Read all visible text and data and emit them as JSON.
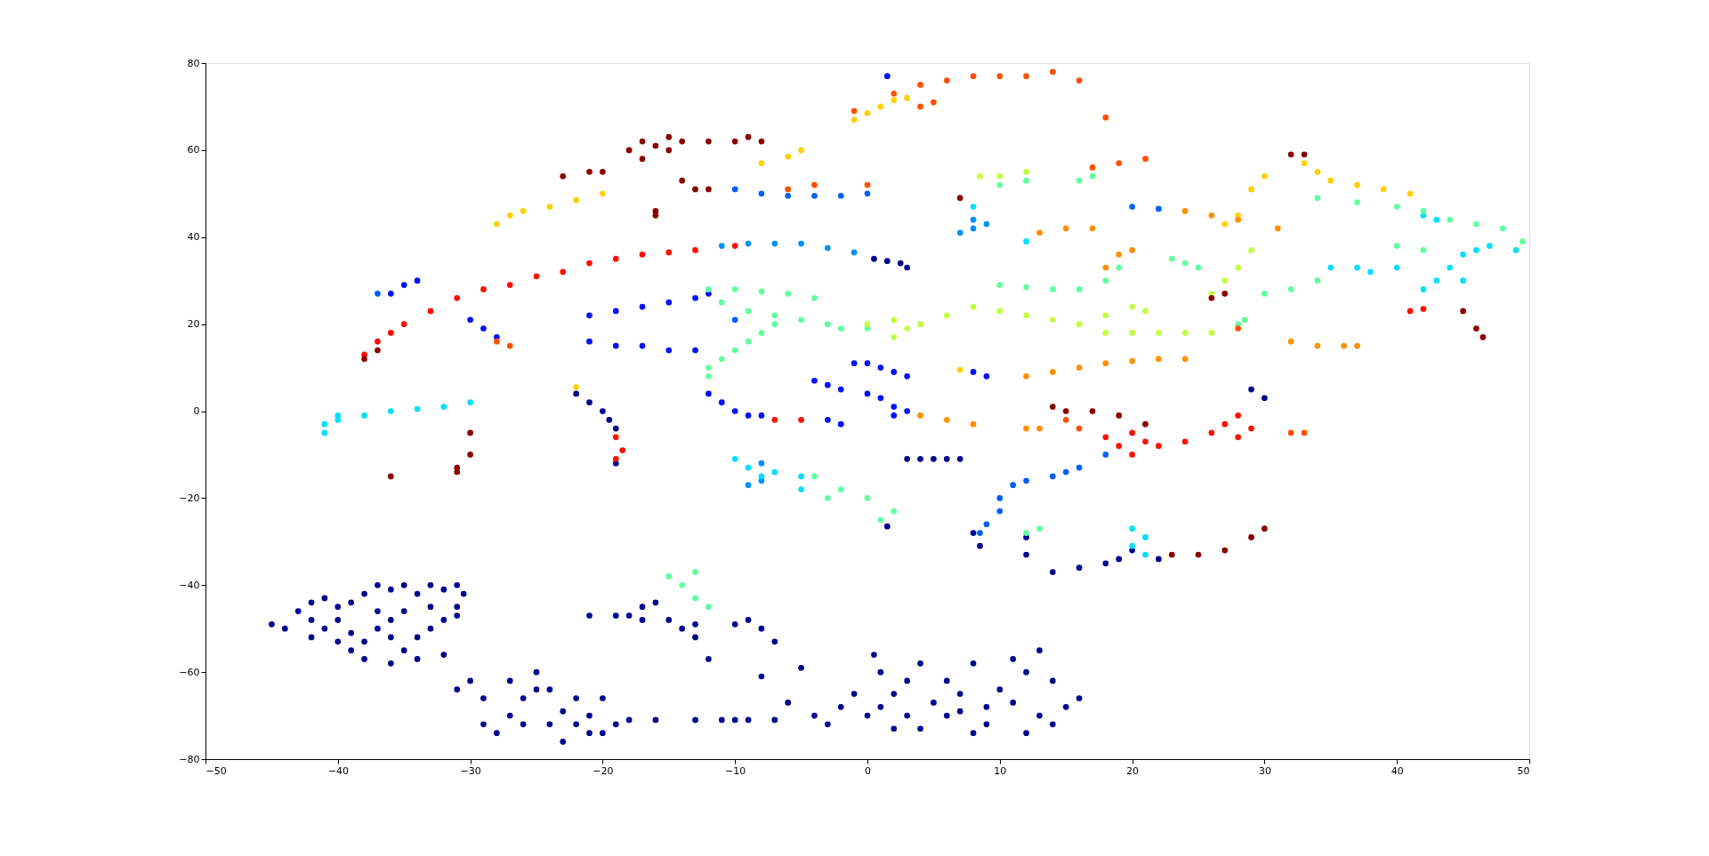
{
  "chart_data": {
    "type": "scatter",
    "xlim": [
      -50,
      50
    ],
    "ylim": [
      -80,
      80
    ],
    "xticks": [
      -50,
      -40,
      -30,
      -20,
      -10,
      0,
      10,
      20,
      30,
      40,
      50
    ],
    "yticks": [
      -80,
      -60,
      -40,
      -20,
      0,
      20,
      40,
      60,
      80
    ],
    "grid": false,
    "legend": false,
    "marker": "circle",
    "series": [
      {
        "color": "#00008f",
        "x": [
          -45,
          -44,
          -43,
          -42,
          -42,
          -41,
          -40,
          -41,
          -42,
          -40,
          -39,
          -38,
          -37,
          -36,
          -35,
          -34,
          -33,
          -32,
          -31,
          -31,
          -32,
          -33,
          -32,
          -34,
          -36,
          -38,
          -39,
          -40,
          -39,
          -37,
          -36,
          -35,
          -34,
          -37,
          -35,
          -33,
          -38,
          -36,
          -31,
          -30.5,
          -31,
          -30,
          -29,
          -28,
          -27,
          -27,
          -26,
          -25,
          -25,
          -24,
          -23,
          -22,
          -21,
          -20,
          -19,
          -18,
          -16,
          -13,
          -11,
          -10,
          -9,
          -26,
          -24,
          -22,
          -20,
          -29,
          -23,
          -21,
          -21,
          -19,
          -18,
          -17,
          -16,
          -15,
          -14,
          -13,
          -12,
          -10,
          -9,
          -8,
          -7,
          -8,
          -5,
          -17,
          -13,
          -7,
          -6,
          -4,
          -2,
          -1,
          0,
          0.5,
          1,
          2,
          3,
          3,
          4,
          5,
          6,
          6,
          7,
          8,
          9,
          9,
          10,
          11,
          12,
          12,
          13,
          13,
          14,
          14,
          15,
          16,
          4,
          2,
          -3,
          11,
          8,
          1,
          7,
          -22,
          -21,
          -20,
          -19.5,
          -19,
          -19,
          0.5,
          1.5,
          2.5,
          3,
          3,
          4,
          5,
          6,
          7,
          8,
          8.5,
          12,
          12,
          14,
          16,
          18,
          19,
          20,
          22,
          29,
          30,
          1.5
        ],
        "values": [
          -49,
          -50,
          -46,
          -44,
          -48,
          -43,
          -45,
          -50,
          -52,
          -48,
          -44,
          -42,
          -40,
          -41,
          -40,
          -42,
          -40,
          -41,
          -40,
          -45,
          -48,
          -50,
          -56,
          -57,
          -58,
          -57,
          -55,
          -53,
          -51,
          -50,
          -52,
          -55,
          -52,
          -46,
          -46,
          -45,
          -53,
          -48,
          -47,
          -42,
          -64,
          -62,
          -66,
          -74,
          -70,
          -62,
          -66,
          -64,
          -60,
          -72,
          -76,
          -72,
          -70,
          -66,
          -72,
          -71,
          -71,
          -71,
          -71,
          -71,
          -71,
          -72,
          -64,
          -66,
          -74,
          -72,
          -69,
          -74,
          -47,
          -47,
          -47,
          -45,
          -44,
          -48,
          -50,
          -49,
          -57,
          -49,
          -48,
          -50,
          -53,
          -61,
          -59,
          -48,
          -52,
          -71,
          -67,
          -70,
          -68,
          -65,
          -70,
          -56,
          -60,
          -65,
          -70,
          -62,
          -73,
          -67,
          -70,
          -62,
          -65,
          -58,
          -68,
          -72,
          -64,
          -67,
          -60,
          -74,
          -70,
          -55,
          -62,
          -72,
          -68,
          -66,
          -58,
          -73,
          -72,
          -57,
          -74,
          -68,
          -69,
          4,
          2,
          0,
          -2,
          -4,
          -12,
          35,
          34.5,
          34,
          33,
          -11,
          -11,
          -11,
          -11,
          -11,
          -28,
          -31,
          -29,
          -33,
          -37,
          -36,
          -35,
          -34,
          -32,
          -34,
          5,
          3,
          -26.5
        ]
      },
      {
        "color": "#0010ff",
        "x": [
          -36,
          -35,
          -34,
          -30,
          -29,
          -28,
          -21,
          -19,
          -17,
          -15,
          -13,
          -12,
          -21,
          -19,
          -17,
          -15,
          -13,
          -12,
          -11,
          -10,
          -9,
          -8,
          -2,
          -3,
          -1,
          0,
          1,
          2,
          3,
          -4,
          -3,
          -2,
          0,
          1,
          2,
          2,
          3,
          8,
          9,
          1.5
        ],
        "values": [
          27,
          29,
          30,
          21,
          19,
          17,
          22,
          23,
          24,
          25,
          26,
          27,
          16,
          15,
          15,
          14,
          14,
          4,
          2,
          0,
          -1,
          -1,
          -3,
          -2,
          11,
          11,
          10,
          9,
          8,
          7,
          6,
          5,
          4,
          3,
          1,
          -1,
          0,
          9,
          8,
          77
        ]
      },
      {
        "color": "#0060ff",
        "x": [
          -10,
          -8,
          -6,
          -4,
          -2,
          0,
          10,
          10,
          11,
          12,
          14,
          15,
          16,
          18,
          9,
          8.5,
          20,
          22,
          -10,
          -37
        ],
        "values": [
          51,
          50,
          49.5,
          49.5,
          49.5,
          50,
          -23,
          -20,
          -17,
          -16,
          -15,
          -14,
          -13,
          -10,
          -26,
          -28,
          47,
          46.5,
          21,
          27
        ]
      },
      {
        "color": "#0090ff",
        "x": [
          -11,
          -9,
          -7,
          -5,
          -3,
          -1,
          -8,
          -9,
          -8,
          8,
          9,
          7,
          8
        ],
        "values": [
          38,
          38.5,
          38.5,
          38.5,
          37.5,
          36.5,
          -12,
          -17,
          -16,
          44,
          43,
          41,
          42
        ]
      },
      {
        "color": "#00e0ff",
        "x": [
          -41,
          -40,
          -38,
          -36,
          -34,
          -32,
          -30,
          -41,
          -40,
          -10,
          -9,
          -8,
          -7,
          -5,
          -5,
          42,
          43,
          45,
          46,
          47,
          49,
          44,
          43,
          42,
          45,
          35,
          37,
          40,
          38,
          20,
          21,
          20,
          21,
          8,
          12
        ],
        "values": [
          -3,
          -1,
          -1,
          0,
          0.5,
          1,
          2,
          -5,
          -2,
          -11,
          -13,
          -15,
          -14,
          -15,
          -18,
          45,
          44,
          36,
          37,
          38,
          37,
          33,
          30,
          28,
          30,
          33,
          33,
          33,
          32,
          -27,
          -29,
          -31,
          -33,
          47,
          39
        ]
      },
      {
        "color": "#60ffa0",
        "x": [
          -12,
          -10,
          -8,
          -6,
          -4,
          -11,
          -9,
          -7,
          -5,
          -3,
          -2,
          0,
          -12,
          -12,
          -11,
          -10,
          -9,
          -8,
          -7,
          -4,
          -2,
          0,
          2,
          1,
          -3,
          -15,
          -14,
          -13,
          -13,
          -12,
          10,
          12,
          14,
          16,
          18,
          19,
          23,
          24,
          25,
          30,
          32,
          34,
          34,
          37,
          40,
          42,
          44,
          46,
          48,
          49.5,
          40,
          42,
          12,
          13,
          10,
          12,
          16,
          17,
          28,
          28.5
        ],
        "values": [
          28,
          28,
          27.5,
          27,
          26,
          25,
          23,
          22,
          21,
          20,
          19,
          19,
          10,
          8,
          12,
          14,
          16,
          18,
          20,
          -15,
          -18,
          -20,
          -23,
          -25,
          -20,
          -38,
          -40,
          -37,
          -43,
          -45,
          29,
          28.5,
          28,
          28,
          30,
          33,
          35,
          34,
          33,
          27,
          28,
          30,
          49,
          48,
          47,
          46,
          44,
          43,
          42,
          39,
          38,
          37,
          -28,
          -27,
          52,
          53,
          53,
          54,
          20,
          21
        ]
      },
      {
        "color": "#c0ff40",
        "x": [
          4,
          6,
          8,
          10,
          12,
          14,
          16,
          2,
          3,
          18,
          20,
          22,
          24,
          26,
          18,
          20,
          21,
          26,
          27,
          28,
          29,
          8.5,
          10,
          12,
          0,
          2
        ],
        "values": [
          20,
          22,
          24,
          23,
          22,
          21,
          20,
          17,
          19,
          18,
          18,
          18,
          18,
          18,
          22,
          24,
          23,
          27,
          30,
          33,
          37,
          54,
          54,
          55,
          20,
          21
        ]
      },
      {
        "color": "#ffd000",
        "x": [
          -28,
          -27,
          -26,
          -24,
          -22,
          -20,
          -8,
          -6,
          -5,
          -1,
          0,
          1,
          2,
          3,
          -22,
          33,
          34,
          35,
          37,
          39,
          41,
          29,
          30,
          28,
          27,
          7
        ],
        "values": [
          43,
          45,
          46,
          47,
          48.5,
          50,
          57,
          58.5,
          60,
          67,
          68.5,
          70,
          71.5,
          72,
          5.5,
          57,
          55,
          53,
          52,
          51,
          50,
          51,
          54,
          45,
          43,
          9.5
        ]
      },
      {
        "color": "#ff9000",
        "x": [
          12,
          14,
          16,
          18,
          20,
          22,
          24,
          13,
          15,
          17,
          24,
          26,
          28,
          31,
          32,
          34,
          36,
          37,
          4,
          6,
          8,
          12,
          13,
          18,
          19,
          20
        ],
        "values": [
          8,
          9,
          10,
          11,
          11.5,
          12,
          12,
          41,
          42,
          42,
          46,
          45,
          44,
          42,
          16,
          15,
          15,
          15,
          -1,
          -2,
          -3,
          -4,
          -4,
          33,
          36,
          37
        ]
      },
      {
        "color": "#ff5000",
        "x": [
          -6,
          -4,
          0,
          -28,
          -27,
          -1,
          2,
          4,
          6,
          8,
          10,
          12,
          14,
          16,
          4,
          5,
          18,
          17,
          19,
          21,
          15,
          16,
          28,
          33,
          32
        ],
        "values": [
          51,
          52,
          52,
          16,
          15,
          69,
          73,
          75,
          76,
          77,
          77,
          77,
          78,
          76,
          70,
          71,
          67.5,
          56,
          57,
          58,
          -2,
          -4,
          19,
          -5,
          -5
        ]
      },
      {
        "color": "#ff1000",
        "x": [
          -38,
          -37,
          -36,
          -35,
          -33,
          -31,
          -29,
          -27,
          -25,
          -23,
          -21,
          -19,
          -17,
          -15,
          -13,
          -19,
          -18.5,
          -19,
          -10,
          -7,
          -5,
          18,
          19,
          20,
          21,
          22,
          20,
          24,
          26,
          27,
          28,
          29,
          28,
          41,
          42
        ],
        "values": [
          13,
          16,
          18,
          20,
          23,
          26,
          28,
          29,
          31,
          32,
          34,
          35,
          36,
          36.5,
          37,
          -6,
          -9,
          -11,
          38,
          -2,
          -2,
          -6,
          -8,
          -5,
          -7,
          -8,
          -10,
          -7,
          -5,
          -3,
          -6,
          -4,
          -1,
          23,
          23.5
        ]
      },
      {
        "color": "#8b0000",
        "x": [
          -23,
          -21,
          -20,
          -18,
          -17,
          -16,
          -15,
          -14,
          -12,
          -10,
          -9,
          -8,
          -15,
          -17,
          -14,
          -13,
          -12,
          -16,
          -16,
          -38,
          -37,
          -31,
          -30,
          -30,
          -31,
          -36,
          14,
          15,
          17,
          19,
          21,
          25,
          27,
          29,
          30,
          23,
          26,
          27,
          32,
          33,
          45,
          46,
          46.5,
          7
        ],
        "values": [
          54,
          55,
          55,
          60,
          62,
          61,
          63,
          62,
          62,
          62,
          63,
          62,
          60,
          58,
          53,
          51,
          51,
          45,
          46,
          12,
          14,
          -13,
          -10,
          -5,
          -14,
          -15,
          1,
          0,
          0,
          -1,
          -3,
          -33,
          -32,
          -29,
          -27,
          -33,
          26,
          27,
          59,
          59,
          23,
          19,
          17,
          49
        ]
      }
    ]
  }
}
